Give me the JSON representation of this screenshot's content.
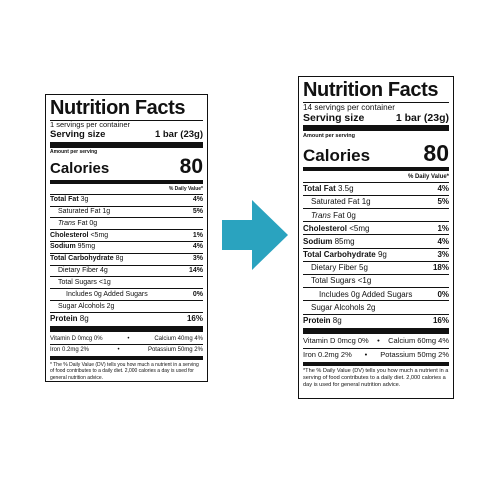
{
  "colors": {
    "arrow": "#2aa3bf",
    "ink": "#111111"
  },
  "labels": [
    {
      "title": "Nutrition Facts",
      "servings": "1 servings per container",
      "serving_size_label": "Serving size",
      "serving_size_value": "1 bar (23g)",
      "amount_per_serving": "Amount per serving",
      "calories_label": "Calories",
      "calories_value": "80",
      "daily_value_header": "% Daily Value*",
      "total_fat": {
        "label": "Total Fat",
        "amount": "3g",
        "dv": "4%"
      },
      "saturated_fat": {
        "label": "Saturated Fat",
        "amount": "1g",
        "dv": "5%"
      },
      "trans_fat": {
        "label": "Trans",
        "rest": "Fat 0g"
      },
      "cholesterol": {
        "label": "Cholesterol",
        "amount": "<5mg",
        "dv": "1%"
      },
      "sodium": {
        "label": "Sodium",
        "amount": "95mg",
        "dv": "4%"
      },
      "total_carb": {
        "label": "Total Carbohydrate",
        "amount": "8g",
        "dv": "3%"
      },
      "fiber": {
        "label": "Dietary Fiber",
        "amount": "4g",
        "dv": "14%"
      },
      "total_sugars": {
        "text": "Total Sugars <1g"
      },
      "added_sugars": {
        "text": "Includes 0g Added Sugars",
        "dv": "0%"
      },
      "sugar_alcohols": {
        "text": "Sugar Alcohols 2g"
      },
      "protein": {
        "label": "Protein",
        "amount": "8g",
        "dv": "16%"
      },
      "vitamin_d": "Vitamin D 0mcg 0%",
      "calcium": "Calcium 40mg 4%",
      "iron": "Iron 0.2mg 2%",
      "potassium": "Potassium 50mg 2%",
      "bullet": "•",
      "footnote": "* The % Daily Value (DV) tells you how much a nutrient in a serving of food contributes to a daily diet. 2,000 calories a day is used for general nutrition advice."
    },
    {
      "title": "Nutrition Facts",
      "servings": "14 servings per container",
      "serving_size_label": "Serving size",
      "serving_size_value": "1 bar (23g)",
      "amount_per_serving": "Amount per serving",
      "calories_label": "Calories",
      "calories_value": "80",
      "daily_value_header": "% Daily Value*",
      "total_fat": {
        "label": "Total Fat",
        "amount": "3.5g",
        "dv": "4%"
      },
      "saturated_fat": {
        "label": "Saturated Fat",
        "amount": "1g",
        "dv": "5%"
      },
      "trans_fat": {
        "label": "Trans",
        "rest": "Fat 0g"
      },
      "cholesterol": {
        "label": "Cholesterol",
        "amount": "<5mg",
        "dv": "1%"
      },
      "sodium": {
        "label": "Sodium",
        "amount": "85mg",
        "dv": "4%"
      },
      "total_carb": {
        "label": "Total Carbohydrate",
        "amount": "9g",
        "dv": "3%"
      },
      "fiber": {
        "label": "Dietary Fiber",
        "amount": "5g",
        "dv": "18%"
      },
      "total_sugars": {
        "text": "Total Sugars <1g"
      },
      "added_sugars": {
        "text": "Includes 0g Added Sugars",
        "dv": "0%"
      },
      "sugar_alcohols": {
        "text": "Sugar Alcohols 2g"
      },
      "protein": {
        "label": "Protein",
        "amount": "8g",
        "dv": "16%"
      },
      "vitamin_d": "Vitamin D 0mcg 0%",
      "calcium": "Calcium 60mg 4%",
      "iron": "Iron 0.2mg 2%",
      "potassium": "Potassium 50mg 2%",
      "bullet": "•",
      "footnote": "*The % Daily Value (DV) tells you how much a nutrient in a serving of food contributes to a daily diet. 2,000 calories a day is used for general nutrition advice."
    }
  ]
}
